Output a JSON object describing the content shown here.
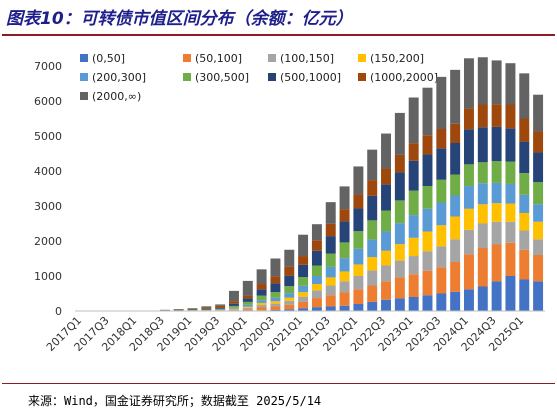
{
  "figure_title": "图表10：可转债市值区间分布（余额：亿元）",
  "source_note": "来源：Wind，国金证券研究所；数据截至 2025/5/14",
  "colors": [
    "#4472c4",
    "#ed7d31",
    "#a5a5a5",
    "#ffc000",
    "#5b9bd5",
    "#70ad47",
    "#264478",
    "#9e480e",
    "#636363"
  ],
  "chart_data": {
    "type": "bar",
    "stacked": true,
    "title": "",
    "xlabel": "",
    "ylabel": "",
    "ylim": [
      0,
      7000
    ],
    "yticks": [
      0,
      1000,
      2000,
      3000,
      4000,
      5000,
      6000,
      7000
    ],
    "grid": false,
    "legend_position": "top",
    "x_tick_labels_shown": [
      "2017Q1",
      "2017Q3",
      "2018Q1",
      "2018Q3",
      "2019Q1",
      "2019Q3",
      "2020Q1",
      "2020Q3",
      "2021Q1",
      "2021Q3",
      "2022Q1",
      "2022Q3",
      "2023Q1",
      "2023Q3",
      "2024Q1",
      "2024Q3",
      "2025Q1"
    ],
    "categories": [
      "2017Q1",
      "2017Q2",
      "2017Q3",
      "2017Q4",
      "2018Q1",
      "2018Q2",
      "2018Q3",
      "2018Q4",
      "2019Q1",
      "2019Q2",
      "2019Q3",
      "2019Q4",
      "2020Q1",
      "2020Q2",
      "2020Q3",
      "2020Q4",
      "2021Q1",
      "2021Q2",
      "2021Q3",
      "2021Q4",
      "2022Q1",
      "2022Q2",
      "2022Q3",
      "2022Q4",
      "2023Q1",
      "2023Q2",
      "2023Q3",
      "2023Q4",
      "2024Q1",
      "2024Q2",
      "2024Q3",
      "2024Q4",
      "2025Q1",
      "2025Q2"
    ],
    "series": [
      {
        "name": "(0,50]",
        "values": [
          0,
          0,
          0,
          0,
          0,
          0,
          1,
          1,
          2,
          2,
          3,
          5,
          10,
          20,
          30,
          50,
          80,
          110,
          130,
          150,
          200,
          260,
          320,
          360,
          400,
          450,
          500,
          550,
          620,
          700,
          850,
          1000,
          900,
          850
        ]
      },
      {
        "name": "(50,100]",
        "values": [
          0,
          0,
          0,
          0,
          0,
          0,
          1,
          2,
          3,
          5,
          10,
          20,
          40,
          80,
          100,
          130,
          180,
          260,
          320,
          380,
          420,
          470,
          530,
          600,
          650,
          700,
          750,
          850,
          1000,
          1100,
          1050,
          950,
          850,
          750
        ]
      },
      {
        "name": "(100,150]",
        "values": [
          0,
          0,
          0,
          0,
          0,
          0,
          2,
          3,
          5,
          8,
          12,
          20,
          40,
          70,
          80,
          110,
          150,
          220,
          280,
          320,
          380,
          430,
          450,
          480,
          520,
          560,
          600,
          650,
          700,
          700,
          650,
          600,
          550,
          450
        ]
      },
      {
        "name": "(150,200]",
        "values": [
          0,
          0,
          0,
          0,
          0,
          0,
          2,
          3,
          5,
          5,
          8,
          20,
          30,
          60,
          70,
          90,
          130,
          180,
          230,
          280,
          330,
          380,
          420,
          470,
          520,
          560,
          600,
          650,
          600,
          550,
          530,
          520,
          500,
          500
        ]
      },
      {
        "name": "(200,300]",
        "values": [
          0,
          0,
          0,
          0,
          0,
          0,
          3,
          5,
          5,
          8,
          10,
          30,
          60,
          80,
          100,
          130,
          180,
          230,
          300,
          380,
          450,
          500,
          550,
          600,
          650,
          650,
          650,
          600,
          650,
          600,
          580,
          560,
          520,
          500
        ]
      },
      {
        "name": "(300,500]",
        "values": [
          0,
          0,
          0,
          0,
          0,
          0,
          5,
          8,
          10,
          15,
          20,
          50,
          80,
          130,
          160,
          200,
          250,
          300,
          380,
          450,
          500,
          550,
          600,
          650,
          700,
          650,
          650,
          600,
          620,
          600,
          620,
          640,
          620,
          630
        ]
      },
      {
        "name": "(500,1000]",
        "values": [
          0,
          0,
          0,
          0,
          0,
          0,
          5,
          8,
          10,
          20,
          25,
          60,
          100,
          180,
          250,
          300,
          350,
          420,
          500,
          600,
          650,
          700,
          750,
          800,
          850,
          900,
          900,
          900,
          1000,
          1000,
          980,
          950,
          900,
          850
        ]
      },
      {
        "name": "(1000,2000]",
        "values": [
          0,
          0,
          0,
          0,
          0,
          0,
          5,
          10,
          20,
          40,
          60,
          70,
          80,
          150,
          200,
          250,
          250,
          300,
          350,
          350,
          400,
          450,
          450,
          500,
          500,
          550,
          550,
          550,
          600,
          650,
          650,
          680,
          660,
          600
        ]
      },
      {
        "name": "(2000,∞)",
        "values": [
          0,
          0,
          0,
          0,
          0,
          0,
          10,
          15,
          20,
          30,
          40,
          300,
          420,
          420,
          510,
          490,
          610,
          460,
          620,
          650,
          800,
          870,
          1000,
          1200,
          1310,
          1360,
          1490,
          1540,
          1430,
          1350,
          1250,
          1180,
          1290,
          1050
        ]
      }
    ]
  }
}
